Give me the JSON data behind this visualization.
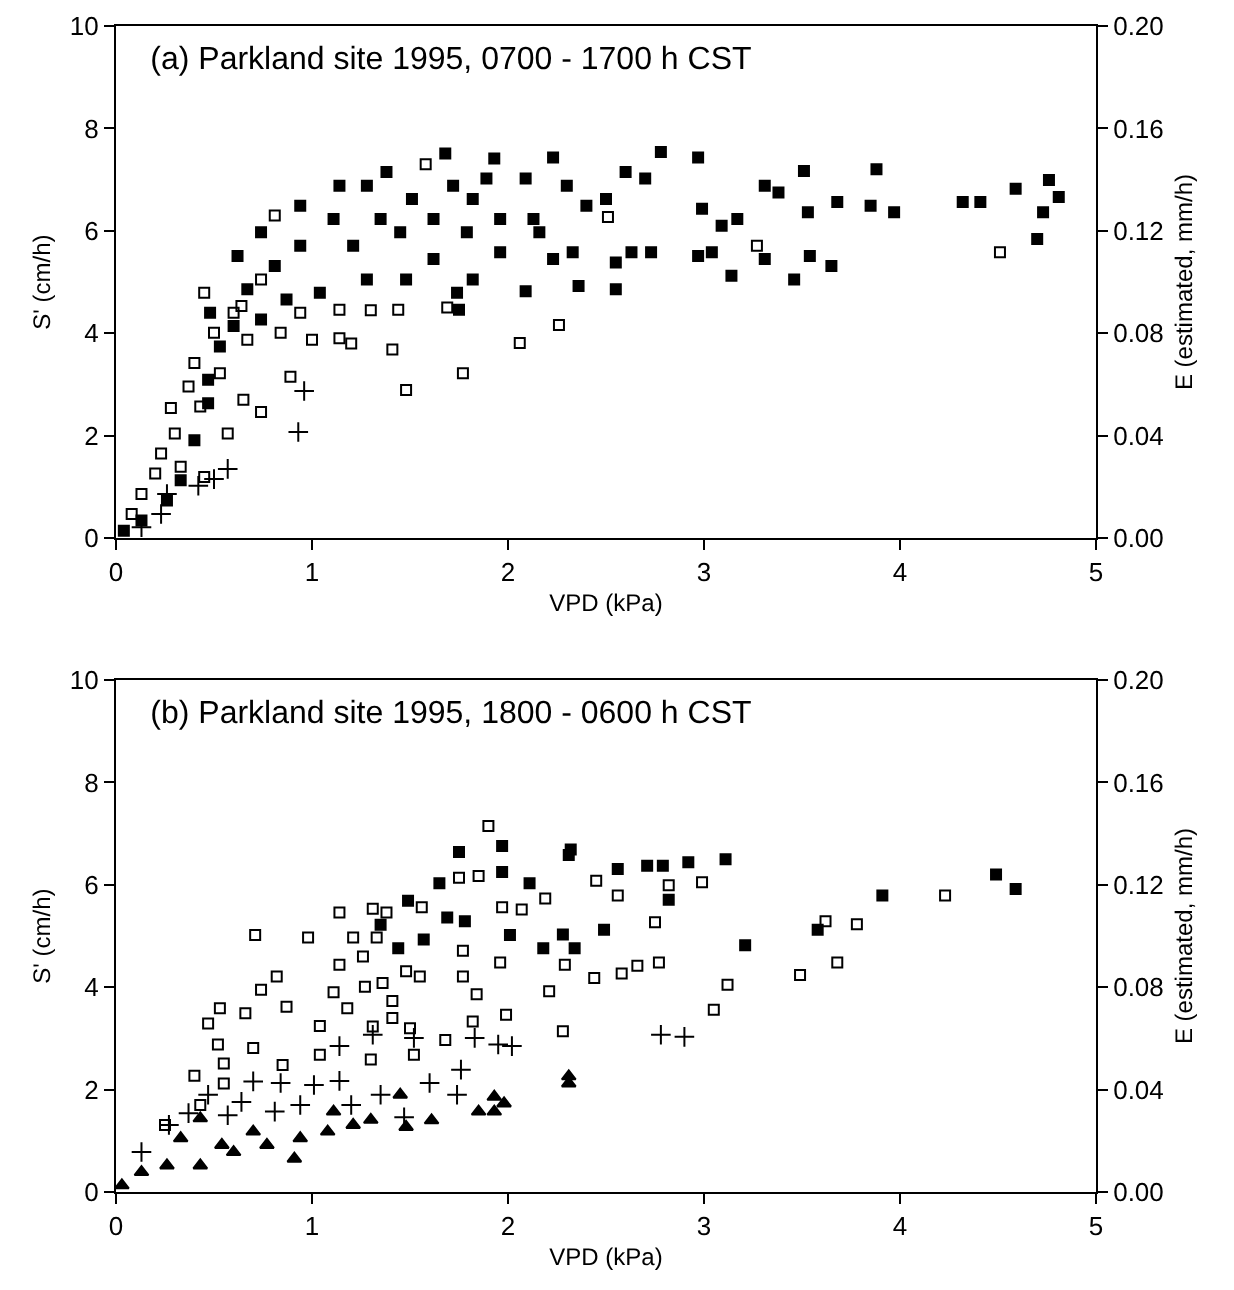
{
  "chart_data": [
    {
      "type": "scatter",
      "title": "(a) Parkland site 1995, 0700 - 1700 h CST",
      "xlabel": "VPD (kPa)",
      "ylabel": "S' (cm/h)",
      "y2label": "E (estimated, mm/h)",
      "xlim": [
        0,
        5
      ],
      "xticks": [
        0,
        1,
        2,
        3,
        4,
        5
      ],
      "ylim": [
        0,
        10
      ],
      "yticks": [
        0,
        2,
        4,
        6,
        8,
        10
      ],
      "y2lim": [
        0,
        0.2
      ],
      "y2ticks": [
        {
          "value": 0,
          "label": "0.00"
        },
        {
          "value": 0.04,
          "label": "0.04"
        },
        {
          "value": 0.08,
          "label": "0.08"
        },
        {
          "value": 0.12,
          "label": "0.12"
        },
        {
          "value": 0.16,
          "label": "0.16"
        },
        {
          "value": 0.2,
          "label": "0.20"
        }
      ],
      "grid": false,
      "series": [
        {
          "color": "#000000",
          "marker": "square",
          "x": [
            1.68,
            1.93,
            2.23,
            2.78,
            2.97,
            3.51,
            3.88,
            4.59,
            4.76,
            4.81,
            4.73,
            4.7,
            4.32,
            4.41,
            3.85,
            3.97,
            3.68,
            3.53,
            3.31,
            3.38,
            3.65,
            3.46,
            3.14,
            3.54,
            3.31,
            3.04,
            2.97,
            3.17,
            3.09,
            2.99,
            2.73,
            2.63,
            2.55,
            2.36,
            2.09,
            1.75,
            1.74,
            2.55,
            2.5,
            2.7,
            2.6,
            2.4,
            2.16,
            1.96,
            1.82,
            1.62,
            1.38,
            1.28,
            1.14,
            0.94,
            0.74,
            0.62,
            0.48,
            0.67,
            0.81,
            0.94,
            1.11,
            1.45,
            1.62,
            1.82,
            1.48,
            1.28,
            1.04,
            0.87,
            0.74,
            0.6,
            0.53,
            0.47,
            0.47,
            0.4,
            0.33,
            0.26,
            0.13,
            0.04,
            1.21,
            1.35,
            1.51,
            1.72,
            1.89,
            2.09,
            2.3,
            2.13,
            1.96,
            1.79,
            2.23,
            2.33
          ],
          "values": [
            7.51,
            7.41,
            7.43,
            7.54,
            7.43,
            7.17,
            7.2,
            6.82,
            6.99,
            6.66,
            6.36,
            5.84,
            6.56,
            6.56,
            6.49,
            6.36,
            6.56,
            6.36,
            6.88,
            6.75,
            5.31,
            5.05,
            5.12,
            5.51,
            5.45,
            5.58,
            5.51,
            6.23,
            6.1,
            6.43,
            5.58,
            5.58,
            5.38,
            4.92,
            4.82,
            4.46,
            4.79,
            4.86,
            6.62,
            7.02,
            7.15,
            6.49,
            5.97,
            5.58,
            6.62,
            6.23,
            7.15,
            6.88,
            6.88,
            6.49,
            5.97,
            5.51,
            4.4,
            4.86,
            5.31,
            5.71,
            6.23,
            5.97,
            5.45,
            5.05,
            5.05,
            5.05,
            4.79,
            4.66,
            4.27,
            4.14,
            3.74,
            3.09,
            2.63,
            1.91,
            1.13,
            0.73,
            0.34,
            0.14,
            5.71,
            6.23,
            6.62,
            6.88,
            7.02,
            7.02,
            6.88,
            6.23,
            6.23,
            5.97,
            5.45,
            5.58
          ]
        },
        {
          "color": "#000000",
          "marker": "square",
          "x": [
            1.58,
            0.81,
            2.51,
            3.27,
            4.51,
            0.45,
            1.3,
            1.44,
            1.69,
            1.14,
            1.0,
            1.14,
            1.2,
            1.41,
            2.26,
            2.06,
            1.77,
            1.48,
            0.89,
            0.74,
            0.65,
            0.57,
            0.43,
            0.28,
            0.4,
            0.5,
            0.64,
            0.74,
            0.6,
            0.23,
            0.33,
            0.45,
            0.13,
            0.08,
            0.2,
            0.3,
            0.37,
            0.53,
            0.67,
            0.84,
            0.94
          ],
          "values": [
            7.3,
            6.3,
            6.27,
            5.71,
            5.58,
            4.79,
            4.45,
            4.46,
            4.5,
            4.46,
            3.87,
            3.9,
            3.8,
            3.68,
            4.16,
            3.81,
            3.22,
            2.89,
            3.15,
            2.46,
            2.7,
            2.04,
            2.57,
            2.54,
            3.42,
            4.01,
            4.53,
            5.05,
            4.4,
            1.65,
            1.39,
            1.19,
            0.86,
            0.47,
            1.26,
            2.04,
            2.96,
            3.22,
            3.87,
            4.01,
            4.4
          ]
        },
        {
          "color": "#000000",
          "marker": "cross",
          "x": [
            0.96,
            0.93,
            0.57,
            0.5,
            0.42,
            0.23,
            0.13,
            0.26
          ],
          "values": [
            2.87,
            2.07,
            1.35,
            1.15,
            1.02,
            0.47,
            0.21,
            0.86
          ]
        }
      ]
    },
    {
      "type": "scatter",
      "title": "(b) Parkland site 1995, 1800 - 0600 h CST",
      "xlabel": "VPD (kPa)",
      "ylabel": "S' (cm/h)",
      "y2label": "E (estimated, mm/h)",
      "xlim": [
        0,
        5
      ],
      "xticks": [
        0,
        1,
        2,
        3,
        4,
        5
      ],
      "ylim": [
        0,
        10
      ],
      "yticks": [
        0,
        2,
        4,
        6,
        8,
        10
      ],
      "y2lim": [
        0,
        0.2
      ],
      "y2ticks": [
        {
          "value": 0,
          "label": "0.00"
        },
        {
          "value": 0.04,
          "label": "0.04"
        },
        {
          "value": 0.08,
          "label": "0.08"
        },
        {
          "value": 0.12,
          "label": "0.12"
        },
        {
          "value": 0.16,
          "label": "0.16"
        },
        {
          "value": 0.2,
          "label": "0.20"
        }
      ],
      "grid": false,
      "series": [
        {
          "color": "#000000",
          "marker": "square",
          "x": [
            1.75,
            1.97,
            2.32,
            2.31,
            1.97,
            1.65,
            2.11,
            2.56,
            2.71,
            2.79,
            2.92,
            3.11,
            2.82,
            4.49,
            4.59,
            3.91,
            3.58,
            3.21,
            2.49,
            2.34,
            2.18,
            2.28,
            2.01,
            1.78,
            1.69,
            1.57,
            1.49,
            1.35,
            1.44
          ],
          "values": [
            6.64,
            6.76,
            6.69,
            6.58,
            6.25,
            6.03,
            6.03,
            6.31,
            6.37,
            6.37,
            6.44,
            6.5,
            5.71,
            6.2,
            5.92,
            5.79,
            5.12,
            4.82,
            5.12,
            4.76,
            4.76,
            5.03,
            5.02,
            5.29,
            5.36,
            4.93,
            5.69,
            5.22,
            4.76
          ]
        },
        {
          "color": "#000000",
          "marker": "square",
          "x": [
            1.9,
            1.75,
            1.85,
            2.45,
            2.82,
            2.99,
            2.56,
            2.19,
            4.23,
            3.78,
            3.62,
            3.68,
            3.49,
            3.12,
            3.05,
            2.77,
            2.66,
            2.58,
            2.44,
            2.75,
            2.28,
            2.21,
            2.29,
            1.96,
            1.99,
            1.82,
            1.68,
            1.84,
            1.77,
            1.55,
            1.48,
            1.77,
            2.07,
            1.97,
            1.14,
            1.31,
            1.38,
            1.56,
            1.21,
            1.33,
            1.26,
            0.98,
            0.71,
            0.82,
            0.74,
            1.14,
            1.36,
            1.27,
            1.11,
            0.87,
            0.66,
            0.53,
            0.47,
            0.52,
            0.7,
            0.55,
            0.4,
            0.55,
            0.85,
            1.04,
            1.04,
            1.18,
            1.31,
            1.41,
            1.5,
            1.52,
            1.3,
            0.25,
            0.43,
            1.41
          ],
          "values": [
            7.15,
            6.14,
            6.17,
            6.08,
            5.99,
            6.05,
            5.79,
            5.73,
            5.79,
            5.23,
            5.29,
            4.48,
            4.24,
            4.05,
            3.56,
            4.48,
            4.42,
            4.27,
            4.18,
            5.27,
            3.14,
            3.92,
            4.44,
            4.48,
            3.46,
            3.33,
            2.97,
            3.86,
            4.21,
            4.21,
            4.31,
            4.71,
            5.52,
            5.56,
            5.46,
            5.53,
            5.46,
            5.56,
            4.97,
            4.97,
            4.6,
            4.97,
            5.02,
            4.21,
            3.95,
            4.44,
            4.08,
            4.01,
            3.9,
            3.62,
            3.49,
            3.59,
            3.29,
            2.88,
            2.81,
            2.51,
            2.27,
            2.12,
            2.48,
            2.68,
            3.24,
            3.59,
            3.23,
            3.73,
            3.2,
            2.68,
            2.59,
            1.31,
            1.7,
            3.4
          ]
        },
        {
          "color": "#000000",
          "marker": "cross",
          "x": [
            2.78,
            2.9,
            1.95,
            2.02,
            1.83,
            1.76,
            1.74,
            1.6,
            1.52,
            1.31,
            1.14,
            1.14,
            1.01,
            0.84,
            0.7,
            0.64,
            0.57,
            0.47,
            0.37,
            1.35,
            1.47,
            1.2,
            0.94,
            0.81,
            0.27,
            0.13
          ],
          "values": [
            3.07,
            3.03,
            2.88,
            2.85,
            3.01,
            2.39,
            1.9,
            2.13,
            3.01,
            3.07,
            2.85,
            2.17,
            2.09,
            2.13,
            2.16,
            1.76,
            1.5,
            1.9,
            1.54,
            1.9,
            1.46,
            1.7,
            1.7,
            1.57,
            1.31,
            0.78
          ]
        },
        {
          "color": "#000000",
          "marker": "triangle",
          "x": [
            2.31,
            2.31,
            1.93,
            1.98,
            1.85,
            1.93,
            1.61,
            1.48,
            1.45,
            1.3,
            1.21,
            1.08,
            0.91,
            0.94,
            0.77,
            0.6,
            0.43,
            0.43,
            0.33,
            0.26,
            0.13,
            0.03,
            0.7,
            1.11,
            0.54
          ],
          "values": [
            2.26,
            2.12,
            1.86,
            1.73,
            1.57,
            1.57,
            1.4,
            1.27,
            1.9,
            1.41,
            1.31,
            1.18,
            0.65,
            1.05,
            0.92,
            0.78,
            1.44,
            0.52,
            1.05,
            0.52,
            0.39,
            0.13,
            1.18,
            1.57,
            0.92
          ]
        }
      ]
    }
  ]
}
